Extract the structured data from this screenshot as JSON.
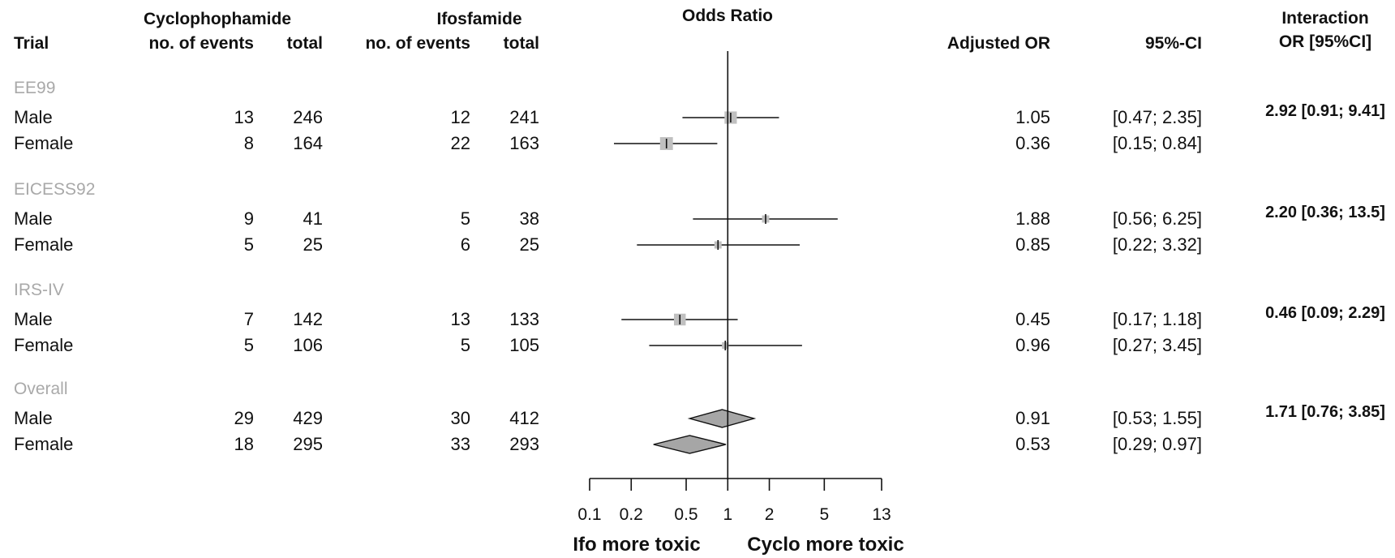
{
  "headers": {
    "trial": "Trial",
    "cyclo_group": "Cyclophophamide",
    "cyclo_events": "no. of events",
    "cyclo_total": "total",
    "ifo_group": "Ifosfamide",
    "ifo_events": "no. of events",
    "ifo_total": "total",
    "plot_title": "Odds Ratio",
    "adj_or": "Adjusted OR",
    "ci": "95%-CI",
    "interaction_line1": "Interaction",
    "interaction_line2": "OR [95%CI]"
  },
  "chart_data": {
    "type": "forest",
    "x_scale": "log",
    "xlim": [
      0.1,
      13
    ],
    "reference_line": 1,
    "xticks": [
      0.1,
      0.2,
      0.5,
      1,
      2,
      5,
      13
    ],
    "xtick_labels": [
      "0.1",
      "0.2",
      "0.5",
      "1",
      "2",
      "5",
      "13"
    ],
    "xlabel_left": "Ifo more toxic",
    "xlabel_right": "Cyclo more toxic",
    "groups": [
      {
        "name": "EE99",
        "interaction": "2.92 [0.91; 9.41]",
        "rows": [
          {
            "label": "Male",
            "cyclo_events": "13",
            "cyclo_total": "246",
            "ifo_events": "12",
            "ifo_total": "241",
            "or": 1.05,
            "lo": 0.47,
            "hi": 2.35,
            "or_text": "1.05",
            "ci_text": "[0.47; 2.35]",
            "weight": 0.8
          },
          {
            "label": "Female",
            "cyclo_events": "8",
            "cyclo_total": "164",
            "ifo_events": "22",
            "ifo_total": "163",
            "or": 0.36,
            "lo": 0.15,
            "hi": 0.84,
            "or_text": "0.36",
            "ci_text": "[0.15; 0.84]",
            "weight": 0.85
          }
        ]
      },
      {
        "name": "EICESS92",
        "interaction": "2.20 [0.36; 13.5]",
        "rows": [
          {
            "label": "Male",
            "cyclo_events": "9",
            "cyclo_total": "41",
            "ifo_events": "5",
            "ifo_total": "38",
            "or": 1.88,
            "lo": 0.56,
            "hi": 6.25,
            "or_text": "1.88",
            "ci_text": "[0.56; 6.25]",
            "weight": 0.35
          },
          {
            "label": "Female",
            "cyclo_events": "5",
            "cyclo_total": "25",
            "ifo_events": "6",
            "ifo_total": "25",
            "or": 0.85,
            "lo": 0.22,
            "hi": 3.32,
            "or_text": "0.85",
            "ci_text": "[0.22; 3.32]",
            "weight": 0.35
          }
        ]
      },
      {
        "name": "IRS-IV",
        "interaction": "0.46 [0.09; 2.29]",
        "rows": [
          {
            "label": "Male",
            "cyclo_events": "7",
            "cyclo_total": "142",
            "ifo_events": "13",
            "ifo_total": "133",
            "or": 0.45,
            "lo": 0.17,
            "hi": 1.18,
            "or_text": "0.45",
            "ci_text": "[0.17; 1.18]",
            "weight": 0.75
          },
          {
            "label": "Female",
            "cyclo_events": "5",
            "cyclo_total": "106",
            "ifo_events": "5",
            "ifo_total": "105",
            "or": 0.96,
            "lo": 0.27,
            "hi": 3.45,
            "or_text": "0.96",
            "ci_text": "[0.27; 3.45]",
            "weight": 0.3
          }
        ]
      },
      {
        "name": "Overall",
        "interaction": "1.71 [0.76; 3.85]",
        "rows": [
          {
            "label": "Male",
            "cyclo_events": "29",
            "cyclo_total": "429",
            "ifo_events": "30",
            "ifo_total": "412",
            "or": 0.91,
            "lo": 0.53,
            "hi": 1.55,
            "or_text": "0.91",
            "ci_text": "[0.53; 1.55]",
            "diamond": true
          },
          {
            "label": "Female",
            "cyclo_events": "18",
            "cyclo_total": "295",
            "ifo_events": "33",
            "ifo_total": "293",
            "or": 0.53,
            "lo": 0.29,
            "hi": 0.97,
            "or_text": "0.53",
            "ci_text": "[0.29; 0.97]",
            "diamond": true
          }
        ]
      }
    ]
  },
  "colors": {
    "group_label": "#a9a9a9",
    "box_fill": "#c0c0c0",
    "diamond_fill": "#a6a6a6",
    "line": "#111111"
  }
}
